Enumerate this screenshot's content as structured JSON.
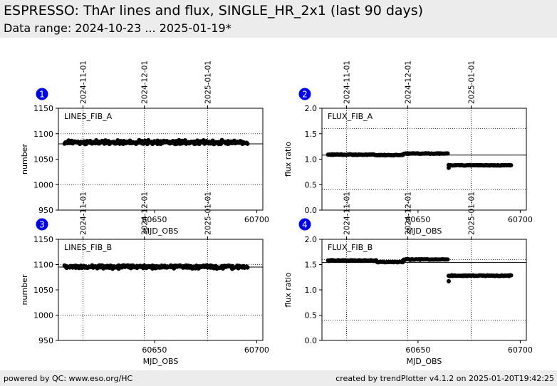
{
  "header": {
    "title": "ESPRESSO: ThAr lines and flux, SINGLE_HR_2x1 (last 90 days)",
    "subtitle": "Data range: 2024-10-23 ... 2025-01-19*"
  },
  "footer": {
    "left": "powered by QC: www.eso.org/HC",
    "right": "created by trendPlotter v4.1.2 on 2025-01-20T19:42:25"
  },
  "colors": {
    "header_bg": "#ececec",
    "badge": "#0000ee",
    "points": "#000000"
  },
  "chart_data": [
    {
      "type": "scatter",
      "badge": "1",
      "label": "LINES_FIB_A",
      "xlabel": "MJD_OBS",
      "ylabel": "number",
      "xlim": [
        60603,
        60703
      ],
      "ylim": [
        950,
        1150
      ],
      "xticks": [
        60650,
        60700
      ],
      "yticks": [
        950,
        1000,
        1050,
        1100,
        1150
      ],
      "date_ticks": [
        {
          "label": "2024-11-01",
          "x": 60615
        },
        {
          "label": "2024-12-01",
          "x": 60645
        },
        {
          "label": "2025-01-01",
          "x": 60676
        }
      ],
      "reference_line": 1080,
      "dotted_lines": [
        1000,
        1100
      ],
      "series": [
        {
          "segments": [
            {
              "x_start": 60606,
              "x_end": 60695,
              "step": 1,
              "level": 1082,
              "amplitude": 2.5
            },
            {
              "x_start": 60608,
              "x_end": 60694,
              "step": 3,
              "level": 1085,
              "amplitude": 2.5
            }
          ]
        }
      ]
    },
    {
      "type": "scatter",
      "badge": "2",
      "label": "FLUX_FIB_A",
      "xlabel": "MJD_OBS",
      "ylabel": "flux ratio",
      "xlim": [
        60603,
        60703
      ],
      "ylim": [
        0.0,
        2.0
      ],
      "xticks": [
        60650,
        60700
      ],
      "yticks": [
        0.0,
        0.5,
        1.0,
        1.5,
        2.0
      ],
      "date_ticks": [
        {
          "label": "2024-11-01",
          "x": 60615
        },
        {
          "label": "2024-12-01",
          "x": 60645
        },
        {
          "label": "2025-01-01",
          "x": 60676
        }
      ],
      "reference_line": 1.08,
      "dotted_lines": [
        0.4,
        1.6
      ],
      "series": [
        {
          "segments": [
            {
              "x_start": 60606,
              "x_end": 60628,
              "step": 1,
              "level": 1.09,
              "amplitude": 0.008
            },
            {
              "x_start": 60629,
              "x_end": 60642,
              "step": 1,
              "level": 1.08,
              "amplitude": 0.006
            },
            {
              "x_start": 60643,
              "x_end": 60664,
              "step": 1,
              "level": 1.11,
              "amplitude": 0.006
            },
            {
              "x_start": 60665,
              "x_end": 60695,
              "step": 1,
              "level": 0.88,
              "amplitude": 0.006
            }
          ],
          "points": [
            [
              60665,
              0.83
            ]
          ]
        }
      ]
    },
    {
      "type": "scatter",
      "badge": "3",
      "label": "LINES_FIB_B",
      "xlabel": "MJD_OBS",
      "ylabel": "number",
      "xlim": [
        60603,
        60703
      ],
      "ylim": [
        950,
        1150
      ],
      "xticks": [
        60650,
        60700
      ],
      "yticks": [
        950,
        1000,
        1050,
        1100,
        1150
      ],
      "date_ticks": [
        {
          "label": "2024-11-01",
          "x": 60615
        },
        {
          "label": "2024-12-01",
          "x": 60645
        },
        {
          "label": "2025-01-01",
          "x": 60676
        }
      ],
      "reference_line": 1095,
      "dotted_lines": [
        1000,
        1100
      ],
      "series": [
        {
          "segments": [
            {
              "x_start": 60606,
              "x_end": 60695,
              "step": 1,
              "level": 1096,
              "amplitude": 2.5
            },
            {
              "x_start": 60607,
              "x_end": 60693,
              "step": 3,
              "level": 1094,
              "amplitude": 2.5
            }
          ]
        }
      ]
    },
    {
      "type": "scatter",
      "badge": "4",
      "label": "FLUX_FIB_B",
      "xlabel": "MJD_OBS",
      "ylabel": "flux ratio",
      "xlim": [
        60603,
        60703
      ],
      "ylim": [
        0.0,
        2.0
      ],
      "xticks": [
        60650,
        60700
      ],
      "yticks": [
        0.0,
        0.5,
        1.0,
        1.5,
        2.0
      ],
      "date_ticks": [
        {
          "label": "2024-11-01",
          "x": 60615
        },
        {
          "label": "2024-12-01",
          "x": 60645
        },
        {
          "label": "2025-01-01",
          "x": 60676
        }
      ],
      "reference_line": 1.54,
      "dotted_lines": [
        0.4,
        1.6
      ],
      "series": [
        {
          "segments": [
            {
              "x_start": 60606,
              "x_end": 60629,
              "step": 1,
              "level": 1.58,
              "amplitude": 0.008
            },
            {
              "x_start": 60630,
              "x_end": 60642,
              "step": 1,
              "level": 1.55,
              "amplitude": 0.006
            },
            {
              "x_start": 60643,
              "x_end": 60664,
              "step": 1,
              "level": 1.6,
              "amplitude": 0.008
            },
            {
              "x_start": 60665,
              "x_end": 60695,
              "step": 1,
              "level": 1.28,
              "amplitude": 0.008
            }
          ],
          "points": [
            [
              60665,
              1.17
            ]
          ]
        }
      ]
    }
  ]
}
